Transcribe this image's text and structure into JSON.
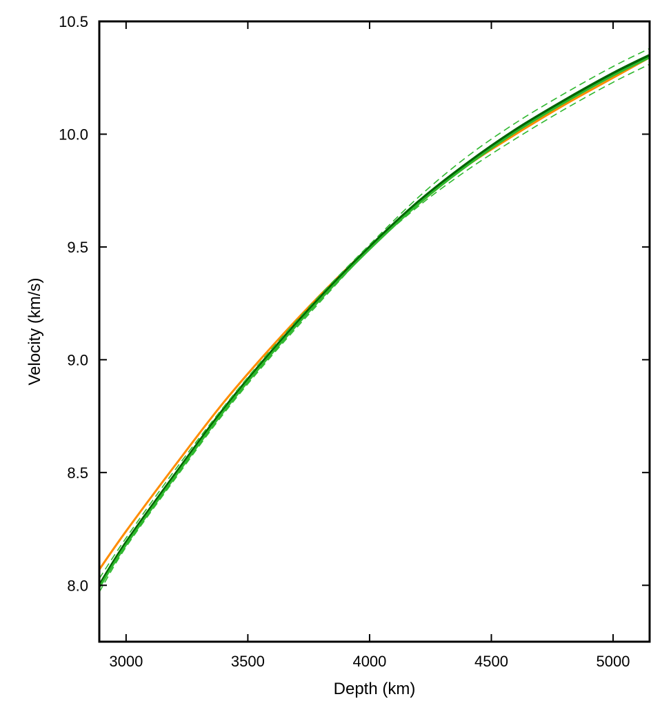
{
  "chart_data": {
    "type": "line",
    "title": "",
    "xlabel": "Depth (km)",
    "ylabel": "Velocity (km/s)",
    "xlim": [
      2890,
      5150
    ],
    "ylim": [
      7.75,
      10.5
    ],
    "xticks": [
      3000,
      3500,
      4000,
      4500,
      5000
    ],
    "xtick_labels": [
      "3000",
      "3500",
      "4000",
      "4500",
      "5000"
    ],
    "yticks": [
      8.0,
      8.5,
      9.0,
      9.5,
      10.0,
      10.5
    ],
    "ytick_labels": [
      "8.0",
      "8.5",
      "9.0",
      "9.5",
      "10.0",
      "10.5"
    ],
    "grid": false,
    "legend": "none",
    "series": [
      {
        "color": "#ff8c00",
        "style": "solid",
        "x": [
          2890,
          3000,
          3200,
          3400,
          3600,
          3800,
          4000,
          4200,
          4400,
          4600,
          4800,
          5000,
          5150
        ],
        "y": [
          8.07,
          8.24,
          8.53,
          8.81,
          9.06,
          9.29,
          9.5,
          9.69,
          9.86,
          10.0,
          10.13,
          10.25,
          10.34
        ]
      },
      {
        "color": "#006400",
        "style": "solid-thick",
        "x": [
          2890,
          3000,
          3200,
          3400,
          3600,
          3800,
          4000,
          4200,
          4400,
          4600,
          4800,
          5000,
          5150
        ],
        "y": [
          8.0,
          8.19,
          8.49,
          8.78,
          9.04,
          9.28,
          9.5,
          9.7,
          9.87,
          10.02,
          10.15,
          10.27,
          10.35
        ]
      },
      {
        "color": "#2eb82e",
        "style": "solid",
        "x": [
          2890,
          3000,
          3200,
          3400,
          3600,
          3800,
          4000,
          4200,
          4400,
          4600,
          4800,
          5000,
          5150
        ],
        "y": [
          7.99,
          8.18,
          8.48,
          8.77,
          9.03,
          9.27,
          9.49,
          9.69,
          9.86,
          10.01,
          10.14,
          10.26,
          10.34
        ]
      },
      {
        "color": "#2eb82e",
        "style": "dashed",
        "x": [
          2890,
          3000,
          3200,
          3400,
          3600,
          3800,
          4000,
          4200,
          4400,
          4600,
          4800,
          5000,
          5150
        ],
        "y": [
          8.03,
          8.21,
          8.51,
          8.79,
          9.05,
          9.29,
          9.51,
          9.72,
          9.9,
          10.05,
          10.18,
          10.3,
          10.38
        ]
      },
      {
        "color": "#2eb82e",
        "style": "dashed",
        "x": [
          2890,
          3000,
          3200,
          3400,
          3600,
          3800,
          4000,
          4200,
          4400,
          4600,
          4800,
          5000,
          5150
        ],
        "y": [
          7.97,
          8.17,
          8.47,
          8.76,
          9.02,
          9.26,
          9.49,
          9.68,
          9.84,
          9.98,
          10.11,
          10.23,
          10.31
        ]
      }
    ]
  }
}
